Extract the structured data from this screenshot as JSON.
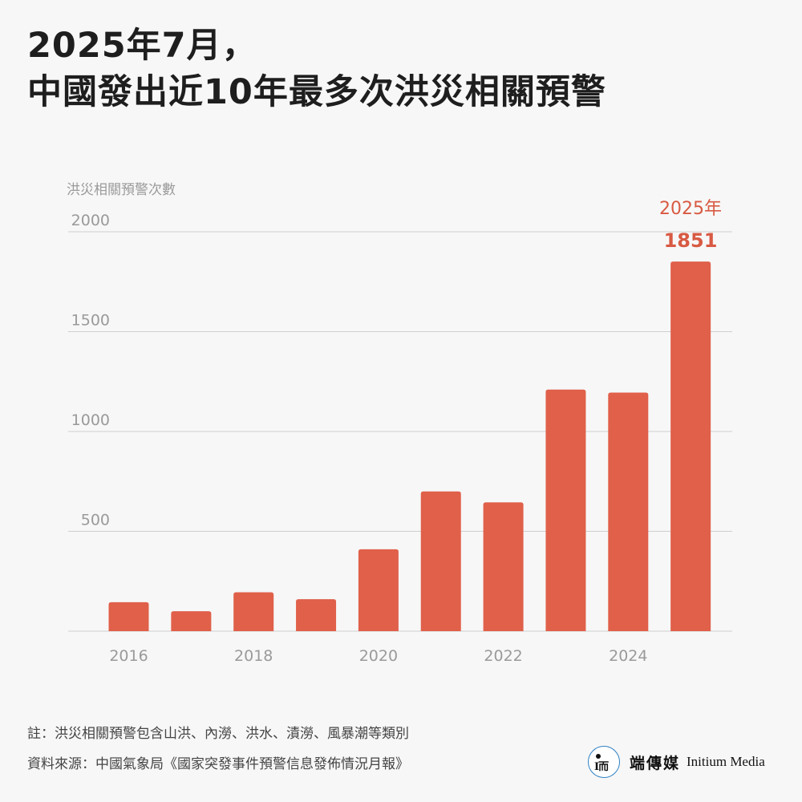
{
  "title": {
    "line1": "2025年7月，",
    "line2": "中國發出近10年最多次洪災相關預警"
  },
  "colors": {
    "bar": "#e0604a",
    "highlight_text": "#d85a43",
    "grid": "#cfcfcf",
    "axis_text": "#9a9a9a"
  },
  "chart_data": {
    "type": "bar",
    "categories": [
      "2016",
      "2017",
      "2018",
      "2019",
      "2020",
      "2021",
      "2022",
      "2023",
      "2024",
      "2025"
    ],
    "values": [
      145,
      100,
      195,
      160,
      410,
      700,
      645,
      1210,
      1195,
      1851
    ],
    "x_tick_labels": [
      "2016",
      "",
      "2018",
      "",
      "2020",
      "",
      "2022",
      "",
      "2024",
      ""
    ],
    "ylabel": "洪災相關預警次數",
    "yticks": [
      500,
      1000,
      1500,
      2000
    ],
    "ylim": [
      0,
      2000
    ],
    "grid": true,
    "highlight": {
      "category_label": "2025年",
      "value_label": "1851"
    }
  },
  "notes": {
    "note": "註：洪災相關預警包含山洪、內澇、洪水、漬澇、風暴潮等類別",
    "source": "資料來源：中國氣象局《國家突發事件預警信息發佈情況月報》"
  },
  "brand": {
    "logo_text": "I而",
    "name_cn": "端傳媒",
    "name_en": "Initium Media"
  }
}
